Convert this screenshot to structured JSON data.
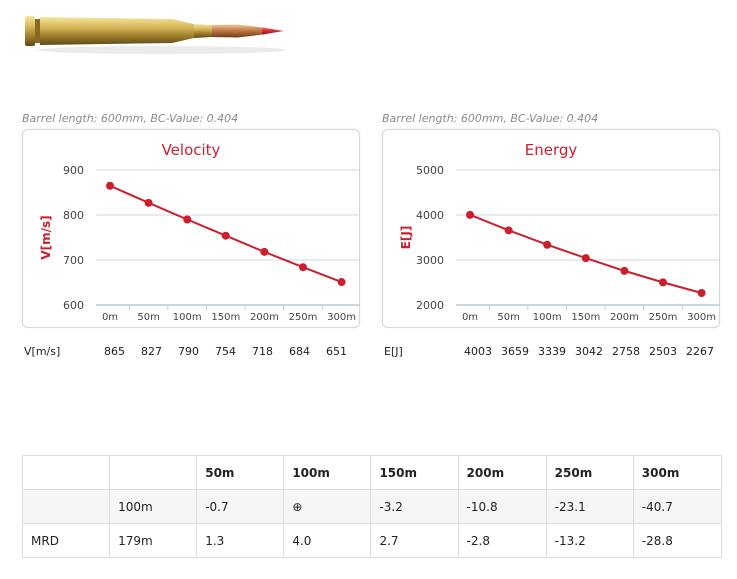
{
  "chart_data": [
    {
      "type": "line",
      "title": "Velocity",
      "caption": "Barrel length: 600mm, BC-Value: 0.404",
      "ylabel": "V[m/s]",
      "categories": [
        "0m",
        "50m",
        "100m",
        "150m",
        "200m",
        "250m",
        "300m"
      ],
      "values": [
        865,
        827,
        790,
        754,
        718,
        684,
        651
      ],
      "ylim": [
        600,
        900
      ],
      "yticks": [
        600,
        700,
        800,
        900
      ],
      "grid": true,
      "color": "#cc1f2d",
      "row_label": "V[m/s]",
      "row_values": [
        "865",
        "827",
        "790",
        "754",
        "718",
        "684",
        "651"
      ]
    },
    {
      "type": "line",
      "title": "Energy",
      "caption": "Barrel length: 600mm, BC-Value: 0.404",
      "ylabel": "E[J]",
      "categories": [
        "0m",
        "50m",
        "100m",
        "150m",
        "200m",
        "250m",
        "300m"
      ],
      "values": [
        4003,
        3659,
        3339,
        3042,
        2758,
        2503,
        2267
      ],
      "ylim": [
        2000,
        5000
      ],
      "yticks": [
        2000,
        3000,
        4000,
        5000
      ],
      "grid": true,
      "color": "#cc1f2d",
      "row_label": "E[J]",
      "row_values": [
        "4003",
        "3659",
        "3339",
        "3042",
        "2758",
        "2503",
        "2267"
      ]
    }
  ],
  "trajectory_table": {
    "headers": [
      "",
      "",
      "50m",
      "100m",
      "150m",
      "200m",
      "250m",
      "300m"
    ],
    "rows": [
      [
        "",
        "100m",
        "-0.7",
        "⊕",
        "-3.2",
        "-10.8",
        "-23.1",
        "-40.7"
      ],
      [
        "MRD",
        "179m",
        "1.3",
        "4.0",
        "2.7",
        "-2.8",
        "-13.2",
        "-28.8"
      ]
    ]
  },
  "colors": {
    "accent": "#cc1f2d",
    "grid": "#d0d8e0",
    "axis": "#b8c7d6"
  }
}
